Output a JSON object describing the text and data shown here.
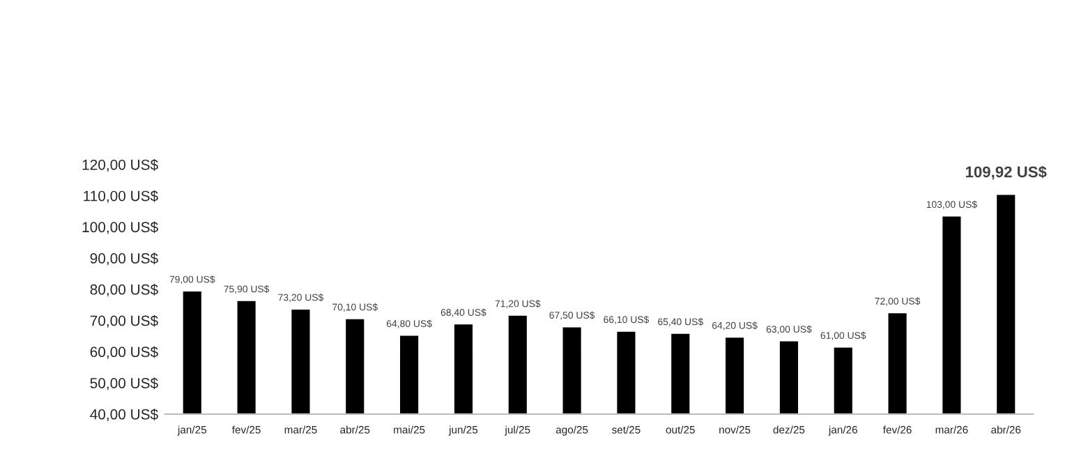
{
  "chart_data": {
    "type": "bar",
    "categories": [
      "jan/25",
      "fev/25",
      "mar/25",
      "abr/25",
      "mai/25",
      "jun/25",
      "jul/25",
      "ago/25",
      "set/25",
      "out/25",
      "nov/25",
      "dez/25",
      "jan/26",
      "fev/26",
      "mar/26",
      "abr/26"
    ],
    "values": [
      79.0,
      75.9,
      73.2,
      70.1,
      64.8,
      68.4,
      71.2,
      67.5,
      66.1,
      65.4,
      64.2,
      63.0,
      61.0,
      72.0,
      103.0,
      109.92
    ],
    "value_labels": [
      "79,00 US$",
      "75,90 US$",
      "73,20 US$",
      "70,10 US$",
      "64,80 US$",
      "68,40 US$",
      "71,20 US$",
      "67,50 US$",
      "66,10 US$",
      "65,40 US$",
      "64,20 US$",
      "63,00 US$",
      "61,00 US$",
      "72,00 US$",
      "103,00 US$",
      "109,92 US$"
    ],
    "color": "#000000",
    "ylim": [
      40,
      120
    ],
    "yticks": [
      {
        "value": 40,
        "label": "40,00 US$"
      },
      {
        "value": 50,
        "label": "50,00 US$"
      },
      {
        "value": 60,
        "label": "60,00 US$"
      },
      {
        "value": 70,
        "label": "70,00 US$"
      },
      {
        "value": 80,
        "label": "80,00 US$"
      },
      {
        "value": 90,
        "label": "90,00 US$"
      },
      {
        "value": 100,
        "label": "100,00 US$"
      },
      {
        "value": 110,
        "label": "110,00 US$"
      },
      {
        "value": 120,
        "label": "120,00 US$"
      }
    ],
    "grid": false,
    "legend": false
  }
}
